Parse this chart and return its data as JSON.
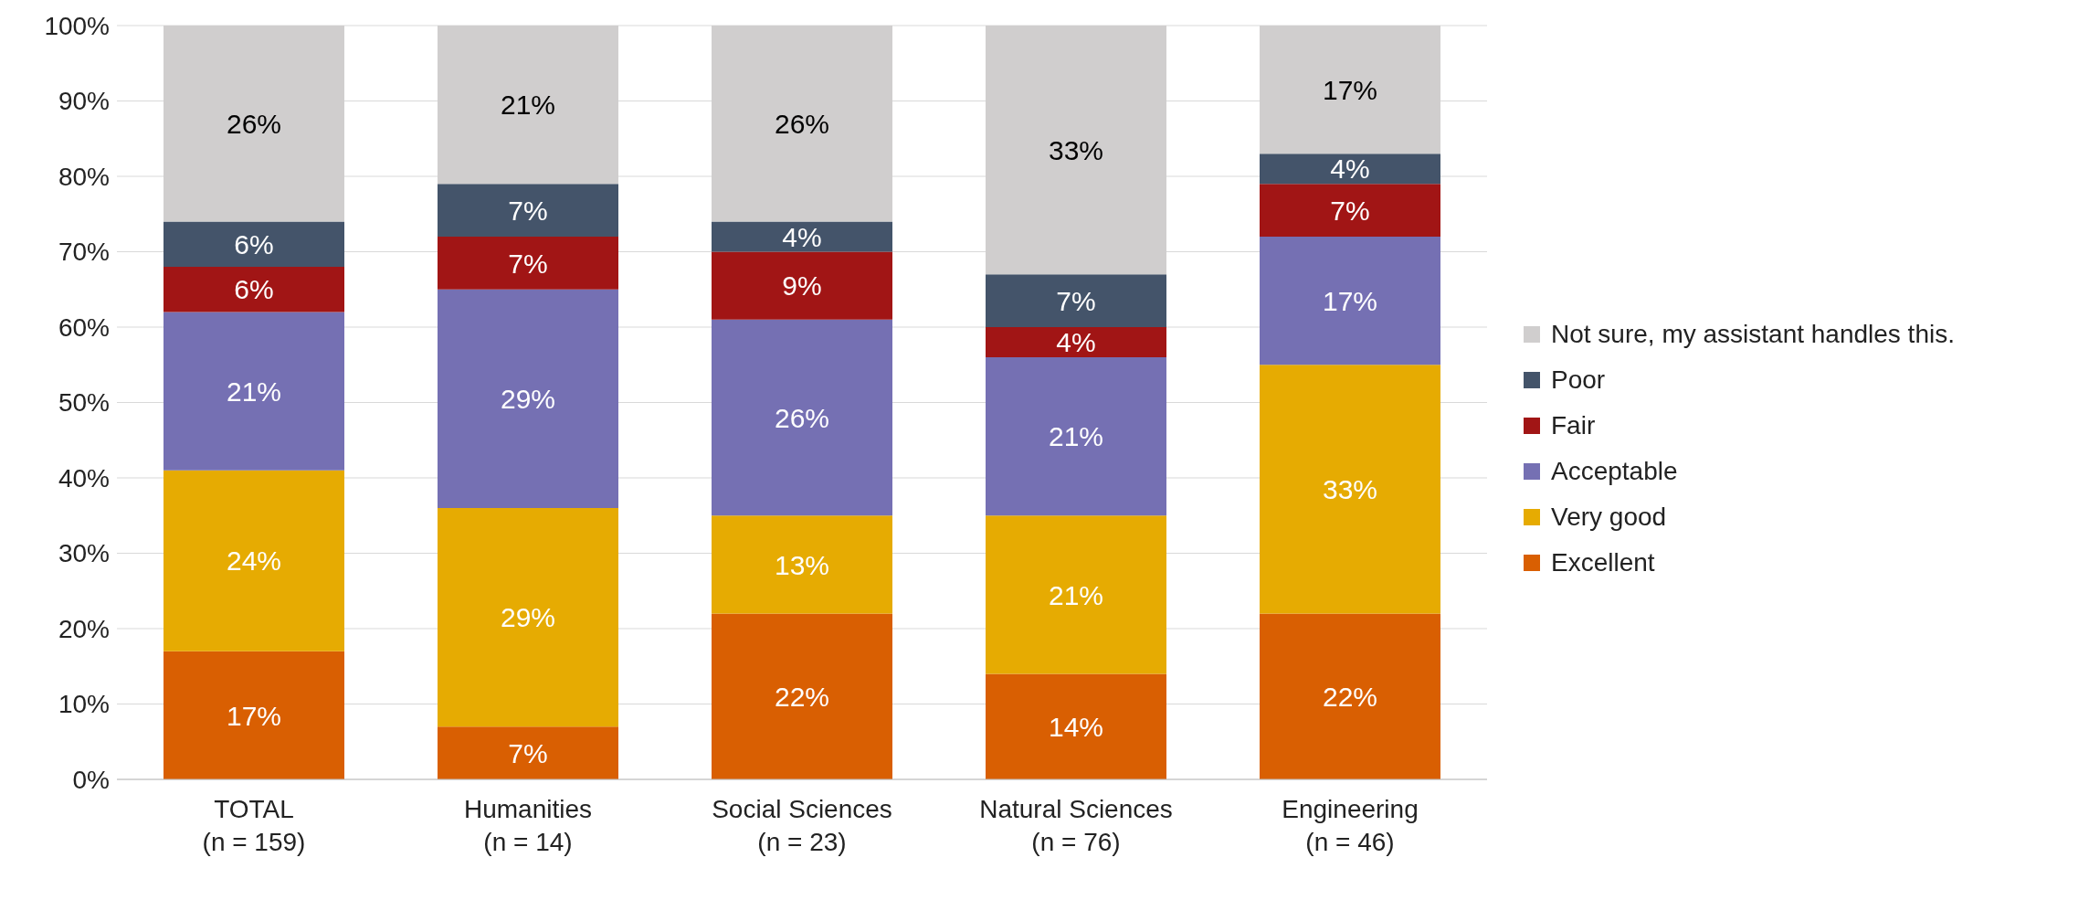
{
  "chart_data": {
    "type": "bar",
    "stacked": true,
    "categories": [
      "TOTAL\n(n = 159)",
      "Humanities\n(n = 14)",
      "Social Sciences\n(n = 23)",
      "Natural Sciences\n(n = 76)",
      "Engineering\n(n = 46)"
    ],
    "series": [
      {
        "name": "Excellent",
        "color": "#d95f02",
        "values": [
          17,
          7,
          22,
          14,
          22
        ],
        "value_labels": [
          "17%",
          "7%",
          "22%",
          "14%",
          "22%"
        ]
      },
      {
        "name": "Very good",
        "color": "#e6ab02",
        "values": [
          24,
          29,
          13,
          21,
          33
        ],
        "value_labels": [
          "24%",
          "29%",
          "13%",
          "21%",
          "33%"
        ]
      },
      {
        "name": "Acceptable",
        "color": "#7570b3",
        "values": [
          21,
          29,
          26,
          21,
          17
        ],
        "value_labels": [
          "21%",
          "29%",
          "26%",
          "21%",
          "17%"
        ]
      },
      {
        "name": "Fair",
        "color": "#a11515",
        "values": [
          6,
          7,
          9,
          4,
          7
        ],
        "value_labels": [
          "6%",
          "7%",
          "9%",
          "4%",
          "7%"
        ]
      },
      {
        "name": "Poor",
        "color": "#44546a",
        "values": [
          6,
          7,
          4,
          7,
          4
        ],
        "value_labels": [
          "6%",
          "7%",
          "4%",
          "7%",
          "4%"
        ]
      },
      {
        "name": "Not sure, my assistant handles this.",
        "color": "#d0cece",
        "values": [
          26,
          21,
          26,
          33,
          17
        ],
        "value_labels": [
          "26%",
          "21%",
          "26%",
          "33%",
          "17%"
        ]
      }
    ],
    "ylim": [
      0,
      100
    ],
    "yticks": [
      {
        "value": 0,
        "label": "0%"
      },
      {
        "value": 10,
        "label": "10%"
      },
      {
        "value": 20,
        "label": "20%"
      },
      {
        "value": 30,
        "label": "30%"
      },
      {
        "value": 40,
        "label": "40%"
      },
      {
        "value": 50,
        "label": "50%"
      },
      {
        "value": 60,
        "label": "60%"
      },
      {
        "value": 70,
        "label": "70%"
      },
      {
        "value": 80,
        "label": "80%"
      },
      {
        "value": 90,
        "label": "90%"
      },
      {
        "value": 100,
        "label": "100%"
      }
    ],
    "grid": "y",
    "legend": "right"
  }
}
